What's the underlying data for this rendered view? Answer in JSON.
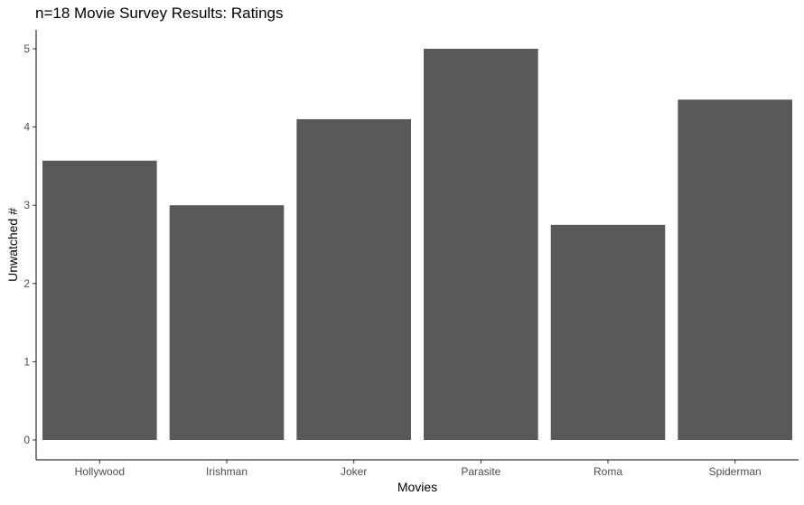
{
  "chart_data": {
    "type": "bar",
    "title": "n=18 Movie Survey Results: Ratings",
    "xlabel": "Movies",
    "ylabel": "Unwatched #",
    "categories": [
      "Hollywood",
      "Irishman",
      "Joker",
      "Parasite",
      "Roma",
      "Spiderman"
    ],
    "values": [
      3.57,
      3.0,
      4.1,
      5.0,
      2.75,
      4.35
    ],
    "ylim": [
      0,
      5.3
    ],
    "yticks": [
      0,
      1,
      2,
      3,
      4,
      5
    ],
    "grid": false,
    "legend": "none",
    "bar_color": "#595959",
    "axis_color": "#000000",
    "tick_label_color": "#4d4d4d"
  }
}
